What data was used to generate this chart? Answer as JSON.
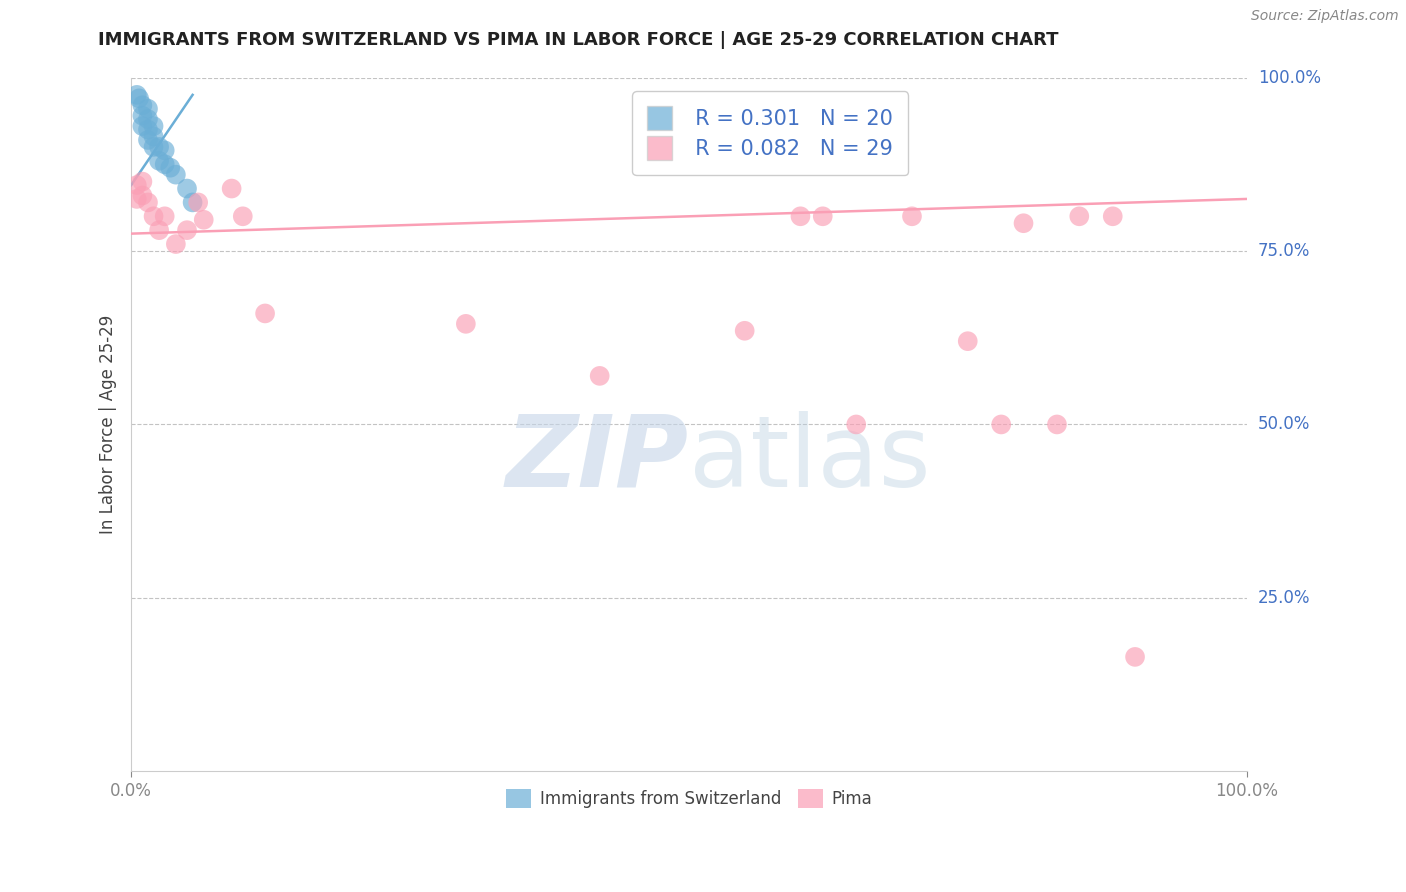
{
  "title": "IMMIGRANTS FROM SWITZERLAND VS PIMA IN LABOR FORCE | AGE 25-29 CORRELATION CHART",
  "source": "Source: ZipAtlas.com",
  "ylabel": "In Labor Force | Age 25-29",
  "xlim": [
    0.0,
    1.0
  ],
  "ylim": [
    0.0,
    1.0
  ],
  "ytick_positions": [
    0.25,
    0.5,
    0.75,
    1.0
  ],
  "ytick_labels": [
    "25.0%",
    "50.0%",
    "75.0%",
    "100.0%"
  ],
  "background_color": "#ffffff",
  "swiss_color": "#6baed6",
  "pima_color": "#fa9fb5",
  "swiss_R": 0.301,
  "swiss_N": 20,
  "pima_R": 0.082,
  "pima_N": 29,
  "swiss_scatter_x": [
    0.005,
    0.007,
    0.01,
    0.01,
    0.01,
    0.015,
    0.015,
    0.015,
    0.015,
    0.02,
    0.02,
    0.02,
    0.025,
    0.025,
    0.03,
    0.03,
    0.035,
    0.04,
    0.05,
    0.055
  ],
  "swiss_scatter_y": [
    0.975,
    0.97,
    0.96,
    0.945,
    0.93,
    0.955,
    0.94,
    0.925,
    0.91,
    0.93,
    0.915,
    0.9,
    0.9,
    0.88,
    0.895,
    0.875,
    0.87,
    0.86,
    0.84,
    0.82
  ],
  "pima_scatter_x": [
    0.005,
    0.005,
    0.01,
    0.01,
    0.015,
    0.02,
    0.025,
    0.03,
    0.04,
    0.05,
    0.06,
    0.065,
    0.09,
    0.1,
    0.12,
    0.3,
    0.42,
    0.55,
    0.6,
    0.62,
    0.65,
    0.7,
    0.75,
    0.78,
    0.8,
    0.83,
    0.85,
    0.88,
    0.9
  ],
  "pima_scatter_y": [
    0.845,
    0.825,
    0.85,
    0.83,
    0.82,
    0.8,
    0.78,
    0.8,
    0.76,
    0.78,
    0.82,
    0.795,
    0.84,
    0.8,
    0.66,
    0.645,
    0.57,
    0.635,
    0.8,
    0.8,
    0.5,
    0.8,
    0.62,
    0.5,
    0.79,
    0.5,
    0.8,
    0.8,
    0.165
  ],
  "swiss_trendline_x": [
    0.0,
    0.055
  ],
  "swiss_trendline_y": [
    0.845,
    0.975
  ],
  "pima_trendline_x": [
    0.0,
    1.0
  ],
  "pima_trendline_y": [
    0.775,
    0.825
  ]
}
